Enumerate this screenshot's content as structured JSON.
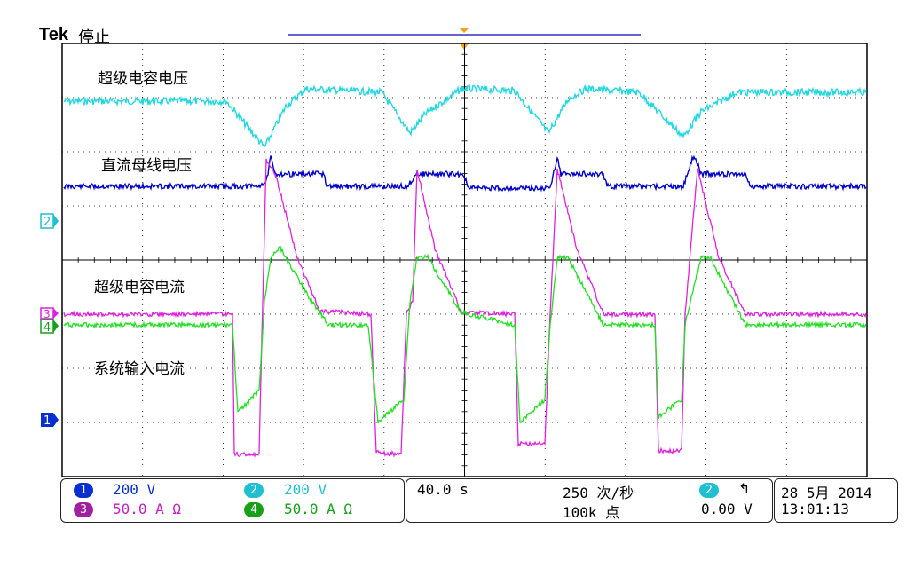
{
  "header": {
    "brand": "Tek",
    "state": "停止"
  },
  "annotations": {
    "supercap_voltage": "超级电容电压",
    "dc_bus_voltage": "直流母线电压",
    "supercap_current": "超级电容电流",
    "system_input_current": "系统输入电流"
  },
  "channel_markers": {
    "ch1": "1",
    "ch2": "2",
    "ch3": "3",
    "ch4": "4"
  },
  "colors": {
    "ch1": "#0000cc",
    "ch2": "#20d8e0",
    "ch3": "#e020e0",
    "ch4": "#20e020",
    "ch1_badge": "#0a2fcf",
    "ch2_badge": "#20c0d0",
    "ch3_badge": "#a020a0",
    "ch4_badge": "#18a018",
    "grid": "#000000",
    "trigger": "#f0a020"
  },
  "channels": [
    {
      "id": "1",
      "scale": "200 V"
    },
    {
      "id": "2",
      "scale": "200 V"
    },
    {
      "id": "3",
      "scale": "50.0 A Ω"
    },
    {
      "id": "4",
      "scale": "50.0 A Ω"
    }
  ],
  "timebase": {
    "time_div": "40.0 s",
    "sample_rate": "250 次/秒",
    "record_length": "100k 点"
  },
  "trigger": {
    "source": "2",
    "edge_icon": "rising-edge-icon",
    "level": "0.00 V"
  },
  "datetime": {
    "date": "28 5月  2014",
    "time": "13:01:13"
  }
}
